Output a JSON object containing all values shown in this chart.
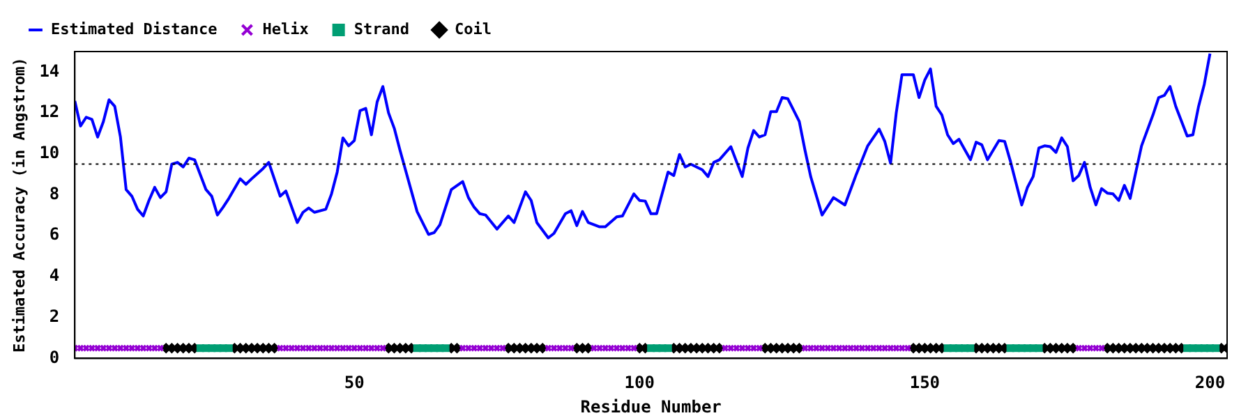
{
  "chart_data": {
    "type": "line",
    "xlabel": "Residue Number",
    "ylabel": "Estimated Accuracy (in Angstrom)",
    "xlim": [
      1,
      203
    ],
    "ylim": [
      0,
      15
    ],
    "xticks": [
      50,
      100,
      150,
      200
    ],
    "yticks": [
      0,
      2,
      4,
      6,
      8,
      10,
      12,
      14
    ],
    "grid": false,
    "legend": "top",
    "ref_lines": [
      {
        "axis": "y",
        "value": 9.5,
        "color": "#000000",
        "line_style": "dotted"
      }
    ],
    "series": [
      {
        "name": "Estimated Distance",
        "type": "line",
        "color": "#0000ff",
        "marker": "none",
        "line_style": "solid",
        "x": [
          1,
          2,
          3,
          4,
          5,
          6,
          7,
          8,
          9,
          10,
          11,
          12,
          13,
          14,
          15,
          16,
          17,
          18,
          19,
          20,
          21,
          22,
          24,
          25,
          26,
          27,
          28,
          30,
          31,
          32,
          34,
          35,
          37,
          38,
          40,
          41,
          42,
          43,
          45,
          46,
          47,
          48,
          49,
          50,
          51,
          52,
          53,
          54,
          55,
          56,
          57,
          58,
          61,
          63,
          64,
          65,
          67,
          69,
          70,
          71,
          72,
          73,
          75,
          77,
          78,
          80,
          81,
          82,
          84,
          85,
          87,
          88,
          89,
          90,
          91,
          93,
          94,
          96,
          97,
          99,
          100,
          101,
          102,
          103,
          105,
          106,
          107,
          108,
          109,
          111,
          112,
          113,
          114,
          116,
          118,
          119,
          120,
          121,
          122,
          123,
          124,
          125,
          126,
          128,
          129,
          130,
          132,
          134,
          136,
          138,
          140,
          142,
          143,
          144,
          145,
          146,
          147,
          148,
          149,
          150,
          151,
          152,
          153,
          154,
          155,
          156,
          158,
          159,
          160,
          161,
          163,
          164,
          165,
          166,
          167,
          168,
          169,
          170,
          171,
          172,
          173,
          174,
          175,
          176,
          177,
          178,
          179,
          180,
          181,
          182,
          183,
          184,
          185,
          186,
          187,
          188,
          190,
          191,
          192,
          193,
          194,
          196,
          197,
          198,
          199,
          200
        ],
        "values": [
          12.58,
          11.36,
          11.79,
          11.68,
          10.82,
          11.57,
          12.64,
          12.32,
          10.82,
          8.25,
          7.93,
          7.29,
          6.96,
          7.72,
          8.36,
          7.86,
          8.14,
          9.49,
          9.58,
          9.36,
          9.79,
          9.71,
          8.25,
          7.93,
          7.01,
          7.39,
          7.82,
          8.78,
          8.51,
          8.78,
          9.28,
          9.58,
          7.93,
          8.18,
          6.64,
          7.14,
          7.35,
          7.14,
          7.29,
          8.04,
          9.11,
          10.78,
          10.39,
          10.65,
          12.11,
          12.22,
          10.93,
          12.54,
          13.29,
          12.0,
          11.25,
          10.18,
          7.18,
          6.06,
          6.15,
          6.53,
          8.25,
          8.64,
          7.86,
          7.39,
          7.07,
          7.01,
          6.32,
          6.96,
          6.64,
          8.14,
          7.72,
          6.64,
          5.89,
          6.11,
          7.07,
          7.22,
          6.49,
          7.18,
          6.64,
          6.43,
          6.43,
          6.92,
          6.96,
          8.04,
          7.72,
          7.69,
          7.07,
          7.07,
          9.11,
          8.94,
          9.97,
          9.36,
          9.49,
          9.22,
          8.89,
          9.58,
          9.71,
          10.35,
          8.89,
          10.29,
          11.14,
          10.82,
          10.93,
          12.06,
          12.06,
          12.75,
          12.69,
          11.58,
          10.18,
          8.89,
          7.01,
          7.86,
          7.5,
          9.0,
          10.39,
          11.21,
          10.6,
          9.54,
          12.0,
          13.87,
          13.87,
          13.87,
          12.75,
          13.61,
          14.15,
          12.32,
          11.9,
          10.93,
          10.5,
          10.71,
          9.71,
          10.57,
          10.44,
          9.71,
          10.65,
          10.61,
          9.65,
          8.57,
          7.5,
          8.36,
          8.89,
          10.29,
          10.39,
          10.35,
          10.07,
          10.78,
          10.35,
          8.68,
          8.94,
          9.58,
          8.36,
          7.5,
          8.3,
          8.08,
          8.04,
          7.72,
          8.46,
          7.82,
          9.11,
          10.39,
          11.9,
          12.75,
          12.86,
          13.29,
          12.32,
          10.87,
          10.93,
          12.32,
          13.4,
          14.9
        ]
      },
      {
        "name": "Helix",
        "type": "scatter",
        "color": "#9400d3",
        "marker": "cross",
        "x": [
          1,
          2,
          3,
          4,
          5,
          6,
          7,
          8,
          9,
          10,
          11,
          12,
          13,
          14,
          15,
          16,
          37,
          38,
          39,
          40,
          41,
          42,
          43,
          44,
          45,
          46,
          47,
          48,
          49,
          50,
          51,
          52,
          53,
          54,
          55,
          69,
          70,
          71,
          72,
          73,
          74,
          75,
          76,
          84,
          85,
          86,
          87,
          88,
          92,
          93,
          94,
          95,
          96,
          97,
          98,
          99,
          115,
          116,
          117,
          118,
          119,
          120,
          121,
          129,
          130,
          131,
          132,
          133,
          134,
          135,
          136,
          137,
          138,
          139,
          140,
          141,
          142,
          143,
          144,
          145,
          146,
          147,
          177,
          178,
          179,
          180,
          181
        ],
        "values": [
          0.5,
          0.5,
          0.5,
          0.5,
          0.5,
          0.5,
          0.5,
          0.5,
          0.5,
          0.5,
          0.5,
          0.5,
          0.5,
          0.5,
          0.5,
          0.5,
          0.5,
          0.5,
          0.5,
          0.5,
          0.5,
          0.5,
          0.5,
          0.5,
          0.5,
          0.5,
          0.5,
          0.5,
          0.5,
          0.5,
          0.5,
          0.5,
          0.5,
          0.5,
          0.5,
          0.5,
          0.5,
          0.5,
          0.5,
          0.5,
          0.5,
          0.5,
          0.5,
          0.5,
          0.5,
          0.5,
          0.5,
          0.5,
          0.5,
          0.5,
          0.5,
          0.5,
          0.5,
          0.5,
          0.5,
          0.5,
          0.5,
          0.5,
          0.5,
          0.5,
          0.5,
          0.5,
          0.5,
          0.5,
          0.5,
          0.5,
          0.5,
          0.5,
          0.5,
          0.5,
          0.5,
          0.5,
          0.5,
          0.5,
          0.5,
          0.5,
          0.5,
          0.5,
          0.5,
          0.5,
          0.5,
          0.5,
          0.5,
          0.5,
          0.5,
          0.5,
          0.5
        ]
      },
      {
        "name": "Strand",
        "type": "scatter",
        "color": "#009e73",
        "marker": "square",
        "x": [
          23,
          24,
          25,
          26,
          27,
          28,
          61,
          62,
          63,
          64,
          65,
          66,
          102,
          103,
          104,
          105,
          154,
          155,
          156,
          157,
          158,
          165,
          166,
          167,
          168,
          169,
          170,
          196,
          197,
          198,
          199,
          200,
          201
        ],
        "values": [
          0.5,
          0.5,
          0.5,
          0.5,
          0.5,
          0.5,
          0.5,
          0.5,
          0.5,
          0.5,
          0.5,
          0.5,
          0.5,
          0.5,
          0.5,
          0.5,
          0.5,
          0.5,
          0.5,
          0.5,
          0.5,
          0.5,
          0.5,
          0.5,
          0.5,
          0.5,
          0.5,
          0.5,
          0.5,
          0.5,
          0.5,
          0.5,
          0.5
        ]
      },
      {
        "name": "Coil",
        "type": "scatter",
        "color": "#000000",
        "marker": "diamond",
        "x": [
          17,
          18,
          19,
          20,
          21,
          22,
          29,
          30,
          31,
          32,
          33,
          34,
          35,
          36,
          56,
          57,
          58,
          59,
          60,
          67,
          68,
          77,
          78,
          79,
          80,
          81,
          82,
          83,
          89,
          90,
          91,
          100,
          101,
          106,
          107,
          108,
          109,
          110,
          111,
          112,
          113,
          114,
          122,
          123,
          124,
          125,
          126,
          127,
          128,
          148,
          149,
          150,
          151,
          152,
          153,
          159,
          160,
          161,
          162,
          163,
          164,
          171,
          172,
          173,
          174,
          175,
          176,
          182,
          183,
          184,
          185,
          186,
          187,
          188,
          189,
          190,
          191,
          192,
          193,
          194,
          195,
          202,
          203
        ],
        "values": [
          0.5,
          0.5,
          0.5,
          0.5,
          0.5,
          0.5,
          0.5,
          0.5,
          0.5,
          0.5,
          0.5,
          0.5,
          0.5,
          0.5,
          0.5,
          0.5,
          0.5,
          0.5,
          0.5,
          0.5,
          0.5,
          0.5,
          0.5,
          0.5,
          0.5,
          0.5,
          0.5,
          0.5,
          0.5,
          0.5,
          0.5,
          0.5,
          0.5,
          0.5,
          0.5,
          0.5,
          0.5,
          0.5,
          0.5,
          0.5,
          0.5,
          0.5,
          0.5,
          0.5,
          0.5,
          0.5,
          0.5,
          0.5,
          0.5,
          0.5,
          0.5,
          0.5,
          0.5,
          0.5,
          0.5,
          0.5,
          0.5,
          0.5,
          0.5,
          0.5,
          0.5,
          0.5,
          0.5,
          0.5,
          0.5,
          0.5,
          0.5,
          0.5,
          0.5,
          0.5,
          0.5,
          0.5,
          0.5,
          0.5,
          0.5,
          0.5,
          0.5,
          0.5,
          0.5,
          0.5,
          0.5,
          0.5,
          0.5
        ]
      }
    ]
  }
}
